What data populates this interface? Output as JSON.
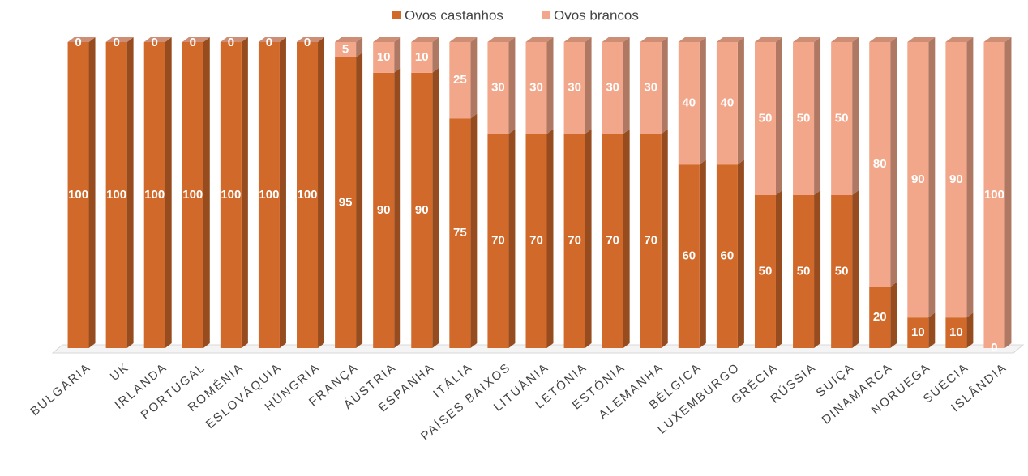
{
  "chart_data": {
    "type": "bar",
    "stacked": true,
    "categories": [
      "BULGÁRIA",
      "UK",
      "IRLANDA",
      "PORTUGAL",
      "ROMÉNIA",
      "ESLOVÁQUIA",
      "HÚNGRIA",
      "FRANÇA",
      "ÁUSTRIA",
      "ESPANHA",
      "ITÁLIA",
      "PAÍSES BAIXOS",
      "LITUÂNIA",
      "LETÓNIA",
      "ESTÓNIA",
      "ALEMANHA",
      "BÉLGICA",
      "LUXEMBURGO",
      "GRÉCIA",
      "RÚSSIA",
      "SUIÇA",
      "DINAMARCA",
      "NORUEGA",
      "SUÉCIA",
      "ISLÂNDIA"
    ],
    "series": [
      {
        "name": "Ovos castanhos",
        "color": "#d0692a",
        "values": [
          100,
          100,
          100,
          100,
          100,
          100,
          100,
          95,
          90,
          90,
          75,
          70,
          70,
          70,
          70,
          70,
          60,
          60,
          50,
          50,
          50,
          20,
          10,
          10,
          0
        ]
      },
      {
        "name": "Ovos brancos",
        "color": "#f2a78a",
        "values": [
          0,
          0,
          0,
          0,
          0,
          0,
          0,
          5,
          10,
          10,
          25,
          30,
          30,
          30,
          30,
          30,
          40,
          40,
          50,
          50,
          50,
          80,
          90,
          90,
          100
        ]
      }
    ],
    "legend": "top"
  }
}
